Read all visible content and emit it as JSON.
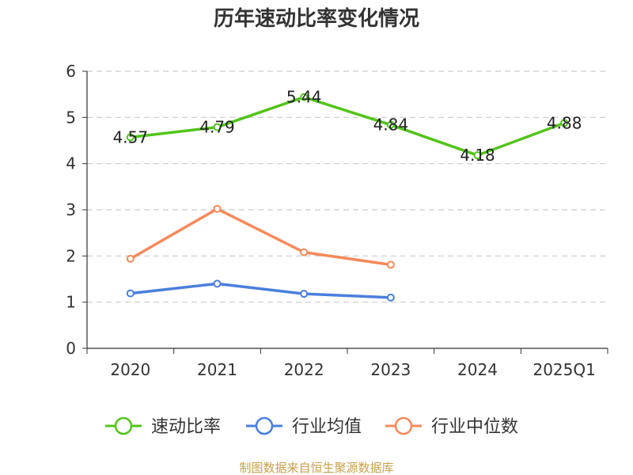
{
  "chart_data": {
    "type": "line",
    "title": "历年速动比率变化情况",
    "categories": [
      "2020",
      "2021",
      "2022",
      "2023",
      "2024",
      "2025Q1"
    ],
    "ylim": [
      0,
      6
    ],
    "yticks": [
      "0",
      "1",
      "2",
      "3",
      "4",
      "5",
      "6"
    ],
    "grid": true,
    "legend_position": "bottom",
    "series": [
      {
        "name": "速动比率",
        "color": "#52c41a",
        "values": [
          4.57,
          4.79,
          5.44,
          4.84,
          4.18,
          4.88
        ],
        "labels": [
          "4.57",
          "4.79",
          "5.44",
          "4.84",
          "4.18",
          "4.88"
        ]
      },
      {
        "name": "行业均值",
        "color": "#4a7fdc",
        "values": [
          1.19,
          1.4,
          1.18,
          1.1,
          null,
          null
        ]
      },
      {
        "name": "行业中位数",
        "color": "#f4895a",
        "values": [
          1.94,
          3.02,
          2.08,
          1.81,
          null,
          null
        ]
      }
    ]
  },
  "footer": "制图数据来自恒生聚源数据库"
}
